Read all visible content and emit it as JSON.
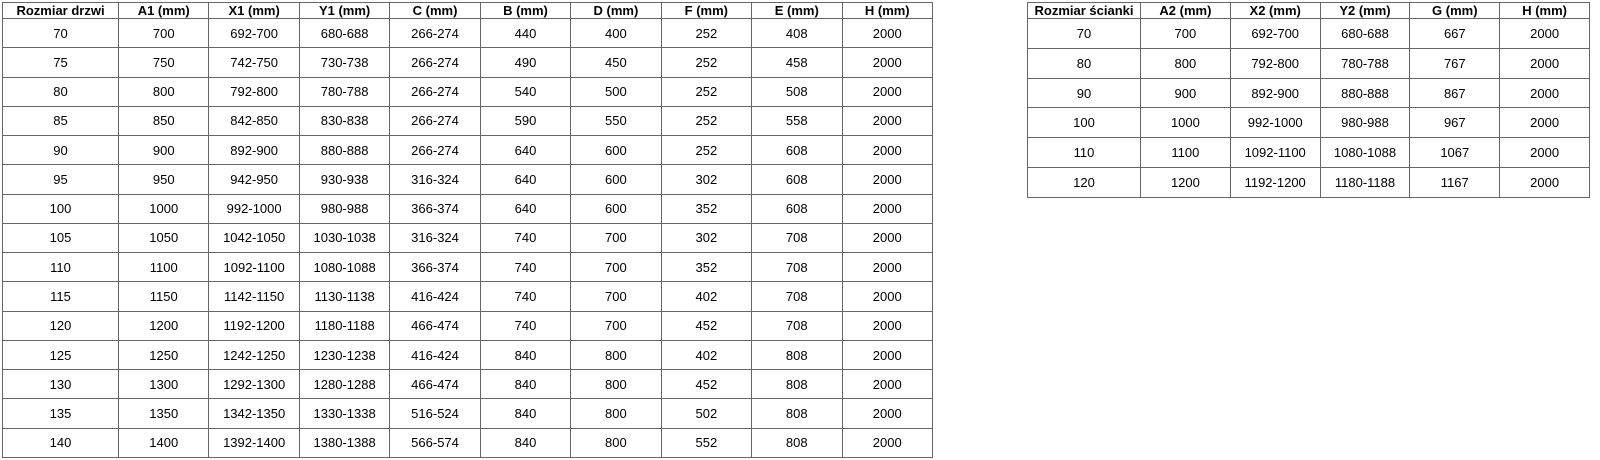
{
  "door_table": {
    "headers": [
      "Rozmiar drzwi",
      "A1 (mm)",
      "X1 (mm)",
      "Y1 (mm)",
      "C (mm)",
      "B (mm)",
      "D (mm)",
      "F (mm)",
      "E (mm)",
      "H (mm)"
    ],
    "rows": [
      [
        "70",
        "700",
        "692-700",
        "680-688",
        "266-274",
        "440",
        "400",
        "252",
        "408",
        "2000"
      ],
      [
        "75",
        "750",
        "742-750",
        "730-738",
        "266-274",
        "490",
        "450",
        "252",
        "458",
        "2000"
      ],
      [
        "80",
        "800",
        "792-800",
        "780-788",
        "266-274",
        "540",
        "500",
        "252",
        "508",
        "2000"
      ],
      [
        "85",
        "850",
        "842-850",
        "830-838",
        "266-274",
        "590",
        "550",
        "252",
        "558",
        "2000"
      ],
      [
        "90",
        "900",
        "892-900",
        "880-888",
        "266-274",
        "640",
        "600",
        "252",
        "608",
        "2000"
      ],
      [
        "95",
        "950",
        "942-950",
        "930-938",
        "316-324",
        "640",
        "600",
        "302",
        "608",
        "2000"
      ],
      [
        "100",
        "1000",
        "992-1000",
        "980-988",
        "366-374",
        "640",
        "600",
        "352",
        "608",
        "2000"
      ],
      [
        "105",
        "1050",
        "1042-1050",
        "1030-1038",
        "316-324",
        "740",
        "700",
        "302",
        "708",
        "2000"
      ],
      [
        "110",
        "1100",
        "1092-1100",
        "1080-1088",
        "366-374",
        "740",
        "700",
        "352",
        "708",
        "2000"
      ],
      [
        "115",
        "1150",
        "1142-1150",
        "1130-1138",
        "416-424",
        "740",
        "700",
        "402",
        "708",
        "2000"
      ],
      [
        "120",
        "1200",
        "1192-1200",
        "1180-1188",
        "466-474",
        "740",
        "700",
        "452",
        "708",
        "2000"
      ],
      [
        "125",
        "1250",
        "1242-1250",
        "1230-1238",
        "416-424",
        "840",
        "800",
        "402",
        "808",
        "2000"
      ],
      [
        "130",
        "1300",
        "1292-1300",
        "1280-1288",
        "466-474",
        "840",
        "800",
        "452",
        "808",
        "2000"
      ],
      [
        "135",
        "1350",
        "1342-1350",
        "1330-1338",
        "516-524",
        "840",
        "800",
        "502",
        "808",
        "2000"
      ],
      [
        "140",
        "1400",
        "1392-1400",
        "1380-1388",
        "566-574",
        "840",
        "800",
        "552",
        "808",
        "2000"
      ]
    ]
  },
  "wall_table": {
    "headers": [
      "Rozmiar ścianki",
      "A2 (mm)",
      "X2 (mm)",
      "Y2 (mm)",
      "G (mm)",
      "H (mm)"
    ],
    "rows": [
      [
        "70",
        "700",
        "692-700",
        "680-688",
        "667",
        "2000"
      ],
      [
        "80",
        "800",
        "792-800",
        "780-788",
        "767",
        "2000"
      ],
      [
        "90",
        "900",
        "892-900",
        "880-888",
        "867",
        "2000"
      ],
      [
        "100",
        "1000",
        "992-1000",
        "980-988",
        "967",
        "2000"
      ],
      [
        "110",
        "1100",
        "1092-1100",
        "1080-1088",
        "1067",
        "2000"
      ],
      [
        "120",
        "1200",
        "1192-1200",
        "1180-1188",
        "1167",
        "2000"
      ]
    ]
  },
  "colors": {
    "border": "#666666",
    "text": "#000000",
    "background": "#ffffff"
  }
}
